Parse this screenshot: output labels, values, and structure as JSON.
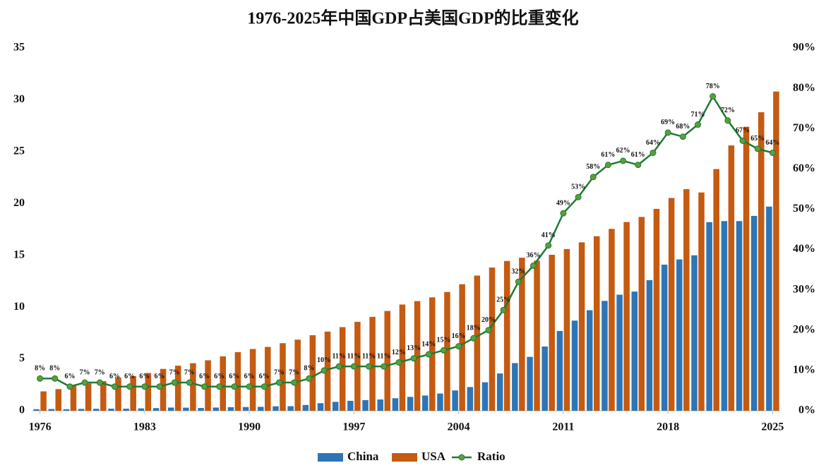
{
  "chart_data": {
    "type": "bar-line",
    "title": "1976-2025年中国GDP占美国GDP的比重变化",
    "x": [
      1976,
      1977,
      1978,
      1979,
      1980,
      1981,
      1982,
      1983,
      1984,
      1985,
      1986,
      1987,
      1988,
      1989,
      1990,
      1991,
      1992,
      1993,
      1994,
      1995,
      1996,
      1997,
      1998,
      1999,
      2000,
      2001,
      2002,
      2003,
      2004,
      2005,
      2006,
      2007,
      2008,
      2009,
      2010,
      2011,
      2012,
      2013,
      2014,
      2015,
      2016,
      2017,
      2018,
      2019,
      2020,
      2021,
      2022,
      2023,
      2024,
      2025
    ],
    "xlim": [
      1975.5,
      2025.5
    ],
    "xticks": [
      1976,
      1983,
      1990,
      1997,
      2004,
      2011,
      2018,
      2025
    ],
    "ylim": [
      0,
      35
    ],
    "yticks": [
      0,
      5,
      10,
      15,
      20,
      25,
      30,
      35
    ],
    "y2lim": [
      0,
      90
    ],
    "y2ticks": [
      {
        "value": 0,
        "label": "0%"
      },
      {
        "value": 10,
        "label": "10%"
      },
      {
        "value": 20,
        "label": "20%"
      },
      {
        "value": 30,
        "label": "30%"
      },
      {
        "value": 40,
        "label": "40%"
      },
      {
        "value": 50,
        "label": "50%"
      },
      {
        "value": 60,
        "label": "60%"
      },
      {
        "value": 70,
        "label": "70%"
      },
      {
        "value": 80,
        "label": "80%"
      },
      {
        "value": 90,
        "label": "90%"
      }
    ],
    "grid": false,
    "legend": "bottom",
    "series": [
      {
        "name": "China",
        "type": "bar",
        "color": "#2e75b6",
        "values": [
          0.15,
          0.17,
          0.15,
          0.18,
          0.19,
          0.2,
          0.2,
          0.23,
          0.26,
          0.31,
          0.3,
          0.27,
          0.31,
          0.35,
          0.36,
          0.38,
          0.43,
          0.44,
          0.56,
          0.73,
          0.86,
          0.96,
          1.03,
          1.09,
          1.21,
          1.34,
          1.47,
          1.66,
          1.96,
          2.29,
          2.75,
          3.6,
          4.6,
          5.2,
          6.2,
          7.7,
          8.7,
          9.7,
          10.6,
          11.2,
          11.5,
          12.6,
          14.1,
          14.6,
          15.0,
          18.2,
          18.3,
          18.3,
          18.8,
          19.7
        ]
      },
      {
        "name": "USA",
        "type": "bar",
        "color": "#c55a11",
        "values": [
          1.87,
          2.09,
          2.38,
          2.63,
          2.86,
          3.21,
          3.34,
          3.64,
          4.04,
          4.35,
          4.59,
          4.87,
          5.25,
          5.66,
          5.96,
          6.16,
          6.52,
          6.86,
          7.29,
          7.64,
          8.07,
          8.58,
          9.06,
          9.63,
          10.25,
          10.58,
          10.94,
          11.46,
          12.21,
          13.04,
          13.82,
          14.45,
          14.77,
          14.48,
          15.05,
          15.6,
          16.25,
          16.84,
          17.55,
          18.21,
          18.7,
          19.48,
          20.53,
          21.38,
          21.06,
          23.32,
          25.6,
          27.4,
          28.8,
          30.8
        ]
      },
      {
        "name": "Ratio",
        "type": "line",
        "axis": "y2",
        "color": "#1e7b34",
        "marker_color": "#5c9e3c",
        "values": [
          8,
          8,
          6,
          7,
          7,
          6,
          6,
          6,
          6,
          7,
          7,
          6,
          6,
          6,
          6,
          6,
          7,
          7,
          8,
          10,
          11,
          11,
          11,
          11,
          12,
          13,
          14,
          15,
          16,
          18,
          20,
          25,
          32,
          36,
          41,
          49,
          53,
          58,
          61,
          62,
          61,
          64,
          69,
          68,
          71,
          78,
          72,
          67,
          65,
          64
        ],
        "value_labels": [
          "8%",
          "8%",
          "6%",
          "7%",
          "7%",
          "6%",
          "6%",
          "6%",
          "6%",
          "7%",
          "7%",
          "6%",
          "6%",
          "6%",
          "6%",
          "6%",
          "7%",
          "7%",
          "8%",
          "10%",
          "11%",
          "11%",
          "11%",
          "11%",
          "12%",
          "13%",
          "14%",
          "15%",
          "16%",
          "18%",
          "20%",
          "25%",
          "32%",
          "36%",
          "41%",
          "49%",
          "53%",
          "58%",
          "61%",
          "62%",
          "61%",
          "64%",
          "69%",
          "68%",
          "71%",
          "78%",
          "72%",
          "67%",
          "65%",
          "64%"
        ]
      }
    ]
  }
}
